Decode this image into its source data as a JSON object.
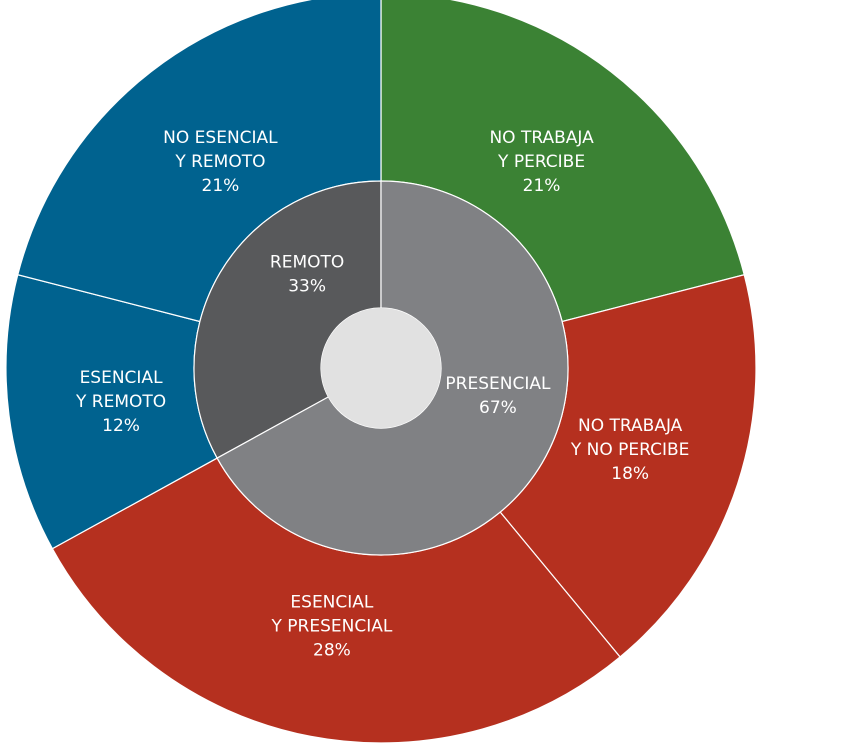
{
  "chart_data": {
    "type": "pie",
    "variant": "nested-donut",
    "inner_ring": [
      {
        "name_lines": [
          "REMOTO"
        ],
        "value": 33,
        "value_label": "33%",
        "color": "#58595b"
      },
      {
        "name_lines": [
          "PRESENCIAL"
        ],
        "value": 67,
        "value_label": "67%",
        "color": "#808184"
      }
    ],
    "outer_ring": [
      {
        "name_lines": [
          "NO TRABAJA",
          "Y PERCIBE"
        ],
        "value": 21,
        "value_label": "21%",
        "color": "#3b8234"
      },
      {
        "name_lines": [
          "NO TRABAJA",
          "Y NO PERCIBE"
        ],
        "value": 18,
        "value_label": "18%",
        "color": "#b5301f"
      },
      {
        "name_lines": [
          "ESENCIAL",
          "Y PRESENCIAL"
        ],
        "value": 28,
        "value_label": "28%",
        "color": "#b5301f"
      },
      {
        "name_lines": [
          "ESENCIAL",
          "Y REMOTO"
        ],
        "value": 12,
        "value_label": "12%",
        "color": "#00628f"
      },
      {
        "name_lines": [
          "NO ESENCIAL",
          "Y REMOTO"
        ],
        "value": 21,
        "value_label": "21%",
        "color": "#00628f"
      }
    ],
    "center_color": "#e1e1e1",
    "separator_color": "#ffffff"
  }
}
